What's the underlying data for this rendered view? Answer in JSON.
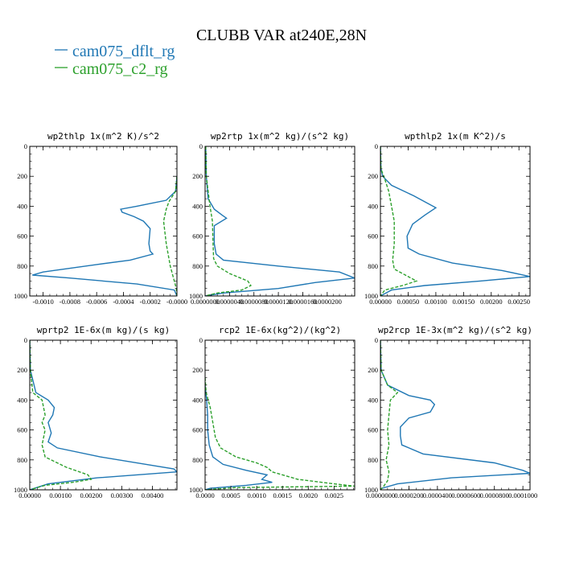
{
  "figure": {
    "title": "CLUBB VAR at240E,28N",
    "legend": [
      {
        "label": "cam075_dflt_rg",
        "color": "#1f77b4",
        "dash": "solid"
      },
      {
        "label": "cam075_c2_rg",
        "color": "#2ca02c",
        "dash": "dashed"
      }
    ]
  },
  "chart_data": [
    {
      "type": "line",
      "title": "wp2thlp  1x(m^2 K)/s^2",
      "xlim": [
        -0.0011,
        0.0
      ],
      "ylim": [
        1000,
        0
      ],
      "xticks": [
        -0.001,
        -0.0008,
        -0.0006,
        -0.0004,
        -0.0002,
        0.0
      ],
      "xticklabels": [
        "-0.0010",
        "-0.0008",
        "-0.0006",
        "-0.0004",
        "-0.0002",
        "-0.0000"
      ],
      "yticks": [
        0,
        200,
        400,
        600,
        800,
        1000
      ],
      "yticklabels": [
        "0",
        "200",
        "400",
        "600",
        "800",
        "1000"
      ],
      "series": [
        {
          "name": "cam075_dflt_rg",
          "y": [
            200,
            300,
            360,
            400,
            420,
            440,
            470,
            500,
            550,
            650,
            700,
            720,
            760,
            790,
            840,
            860,
            880,
            920,
            960,
            1000
          ],
          "x": [
            0.0,
            -1e-05,
            -8e-05,
            -0.0003,
            -0.00042,
            -0.00041,
            -0.00032,
            -0.00025,
            -0.0002,
            -0.00021,
            -0.0002,
            -0.00018,
            -0.00035,
            -0.0006,
            -0.001,
            -0.00108,
            -0.0008,
            -0.0003,
            -2e-05,
            0.0
          ]
        },
        {
          "name": "cam075_c2_rg",
          "y": [
            200,
            300,
            370,
            420,
            500,
            650,
            800,
            900,
            950,
            1000
          ],
          "x": [
            0.0,
            -1e-05,
            -6e-05,
            -8e-05,
            -0.0001,
            -8e-05,
            -5e-05,
            -2e-05,
            -5e-06,
            0.0
          ]
        }
      ]
    },
    {
      "type": "line",
      "title": "wp2rtp  1x(m^2 kg)/(s^2 kg)",
      "xlim": [
        0.0,
        2.45e-05
      ],
      "ylim": [
        1000,
        0
      ],
      "xticks": [
        0.0,
        4e-06,
        8e-06,
        1.2e-05,
        1.6e-05,
        2e-05
      ],
      "xticklabels": [
        "0.0000000",
        "0.0000040",
        "0.0000080",
        "0.0000120",
        "0.0000160",
        "0.0000200"
      ],
      "yticks": [
        0,
        200,
        400,
        600,
        800,
        1000
      ],
      "yticklabels": [
        "0",
        "200",
        "400",
        "600",
        "800",
        "1000"
      ],
      "series": [
        {
          "name": "cam075_dflt_rg",
          "y": [
            0,
            200,
            350,
            420,
            460,
            480,
            530,
            650,
            720,
            760,
            800,
            840,
            880,
            910,
            950,
            980,
            1000
          ],
          "x": [
            1e-07,
            2e-07,
            5e-07,
            1.5e-06,
            2.8e-06,
            3.5e-06,
            1.5e-06,
            1.5e-06,
            1.8e-06,
            3e-06,
            1.2e-05,
            2.2e-05,
            2.45e-05,
            1.8e-05,
            1.2e-05,
            3e-06,
            0.0
          ],
          "w": 1
        },
        {
          "name": "cam075_c2_rg",
          "y": [
            0,
            200,
            400,
            500,
            650,
            750,
            800,
            850,
            900,
            930,
            960,
            980,
            1000
          ],
          "x": [
            1e-07,
            2e-07,
            8e-07,
            1.2e-06,
            1.3e-06,
            1.4e-06,
            2e-06,
            4e-06,
            7e-06,
            7.5e-06,
            6e-06,
            2e-06,
            0.0
          ]
        }
      ]
    },
    {
      "type": "line",
      "title": "wpthlp2  1x(m K^2)/s",
      "xlim": [
        0.0,
        0.0027
      ],
      "ylim": [
        1000,
        0
      ],
      "xticks": [
        0.0,
        0.0005,
        0.001,
        0.0015,
        0.002,
        0.0025
      ],
      "xticklabels": [
        "0.00000",
        "0.00050",
        "0.00100",
        "0.00150",
        "0.00200",
        "0.00250"
      ],
      "yticks": [
        0,
        200,
        400,
        600,
        800,
        1000
      ],
      "yticklabels": [
        "0",
        "200",
        "400",
        "600",
        "800",
        "1000"
      ],
      "series": [
        {
          "name": "cam075_dflt_rg",
          "y": [
            0,
            150,
            200,
            260,
            330,
            410,
            460,
            520,
            600,
            680,
            720,
            780,
            830,
            870,
            900,
            930,
            960,
            1000
          ],
          "x": [
            0.0,
            1e-05,
            4e-05,
            0.0002,
            0.0006,
            0.001,
            0.0008,
            0.00058,
            0.00048,
            0.0005,
            0.0007,
            0.0013,
            0.0022,
            0.0027,
            0.0018,
            0.0008,
            0.0002,
            0.0
          ]
        },
        {
          "name": "cam075_c2_rg",
          "y": [
            0,
            150,
            220,
            300,
            400,
            500,
            650,
            760,
            820,
            860,
            900,
            930,
            960,
            1000
          ],
          "x": [
            0.0,
            1e-05,
            8e-05,
            0.00015,
            0.0002,
            0.00025,
            0.00025,
            0.00022,
            0.00025,
            0.00045,
            0.00065,
            0.0004,
            8e-05,
            0.0
          ]
        }
      ]
    },
    {
      "type": "line",
      "title": "wprtp2  1E-6x(m kg)/(s kg)",
      "xlim": [
        0.0,
        0.0048
      ],
      "ylim": [
        1000,
        0
      ],
      "xticks": [
        0.0,
        0.001,
        0.002,
        0.003,
        0.004
      ],
      "xticklabels": [
        "0.00000",
        "0.00100",
        "0.00200",
        "0.00300",
        "0.00400"
      ],
      "yticks": [
        0,
        200,
        400,
        600,
        800,
        1000
      ],
      "yticklabels": [
        "0",
        "200",
        "400",
        "600",
        "800",
        "1000"
      ],
      "series": [
        {
          "name": "cam075_dflt_rg",
          "y": [
            0,
            200,
            350,
            400,
            450,
            500,
            550,
            620,
            680,
            720,
            780,
            830,
            860,
            880,
            920,
            960,
            1000
          ],
          "x": [
            0.0,
            2e-05,
            0.0002,
            0.0006,
            0.0008,
            0.00075,
            0.0006,
            0.0007,
            0.0006,
            0.0009,
            0.0023,
            0.0038,
            0.0047,
            0.0048,
            0.0022,
            0.0006,
            0.0
          ]
        },
        {
          "name": "cam075_c2_rg",
          "y": [
            0,
            200,
            350,
            400,
            500,
            550,
            600,
            700,
            780,
            850,
            900,
            930,
            950,
            970,
            1000
          ],
          "x": [
            0.0,
            2e-05,
            0.0001,
            0.0004,
            0.0005,
            0.0004,
            0.0005,
            0.0004,
            0.0005,
            0.0012,
            0.0019,
            0.002,
            0.0014,
            0.0005,
            0.0
          ]
        }
      ]
    },
    {
      "type": "line",
      "title": "rcp2  1E-6x(kg^2)/(kg^2)",
      "xlim": [
        0.0,
        0.0029
      ],
      "ylim": [
        1000,
        0
      ],
      "xticks": [
        0.0,
        0.0005,
        0.001,
        0.0015,
        0.002,
        0.0025
      ],
      "xticklabels": [
        "0.0000",
        "0.0005",
        "0.0010",
        "0.0015",
        "0.0020",
        "0.0025"
      ],
      "yticks": [
        0,
        200,
        400,
        600,
        800,
        1000
      ],
      "yticklabels": [
        "0",
        "200",
        "400",
        "600",
        "800",
        "1000"
      ],
      "series": [
        {
          "name": "cam075_dflt_rg",
          "y": [
            300,
            400,
            500,
            600,
            700,
            780,
            830,
            870,
            900,
            930,
            950,
            970,
            990,
            1000
          ],
          "x": [
            0.0,
            3e-05,
            5e-05,
            5e-05,
            8e-05,
            0.00015,
            0.00035,
            0.0008,
            0.0012,
            0.0011,
            0.0013,
            0.0008,
            0.0001,
            0.0
          ]
        },
        {
          "name": "cam075_c2_rg",
          "y": [
            250,
            350,
            450,
            550,
            650,
            720,
            780,
            820,
            850,
            880,
            900,
            930,
            960,
            975,
            985,
            1000
          ],
          "x": [
            0.0,
            2e-05,
            0.0001,
            0.00015,
            0.0002,
            0.0003,
            0.0006,
            0.001,
            0.0012,
            0.0013,
            0.0015,
            0.0018,
            0.0025,
            0.0029,
            0.0006,
            0.0
          ]
        }
      ]
    },
    {
      "type": "line",
      "title": "wp2rcp  1E-3x(m^2 kg)/(s^2 kg)",
      "xlim": [
        0.0,
        0.000105
      ],
      "ylim": [
        1000,
        0
      ],
      "xticks": [
        0.0,
        2e-05,
        4e-05,
        6e-05,
        8e-05,
        0.0001
      ],
      "xticklabels": [
        "0.0000000",
        "0.0000200",
        "0.0000400",
        "0.0000600",
        "0.0000800",
        "0.0001000"
      ],
      "yticks": [
        0,
        200,
        400,
        600,
        800,
        1000
      ],
      "yticklabels": [
        "0",
        "200",
        "400",
        "600",
        "800",
        "1000"
      ],
      "series": [
        {
          "name": "cam075_dflt_rg",
          "y": [
            0,
            200,
            300,
            370,
            400,
            430,
            480,
            520,
            580,
            640,
            700,
            760,
            820,
            870,
            890,
            920,
            960,
            990,
            1000
          ],
          "x": [
            0.0,
            5e-07,
            5e-06,
            2e-05,
            3.5e-05,
            3.8e-05,
            3.5e-05,
            2e-05,
            1.4e-05,
            1.4e-05,
            1.5e-05,
            3e-05,
            8e-05,
            0.0001,
            0.000105,
            5e-05,
            1.2e-05,
            1e-06,
            0.0
          ]
        },
        {
          "name": "cam075_c2_rg",
          "y": [
            0,
            200,
            300,
            350,
            400,
            500,
            600,
            700,
            800,
            880,
            940,
            980,
            1000
          ],
          "x": [
            0.0,
            5e-07,
            5e-06,
            1.2e-05,
            7e-06,
            6e-06,
            5e-06,
            6e-06,
            4e-06,
            6e-06,
            5e-06,
            2e-06,
            0.0
          ]
        }
      ]
    }
  ]
}
